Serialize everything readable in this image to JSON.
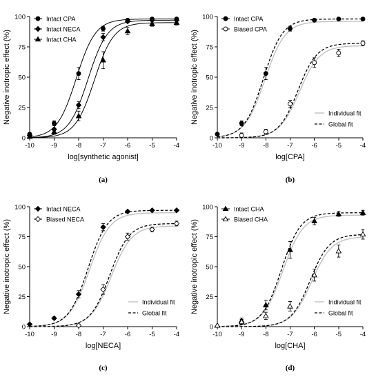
{
  "colors": {
    "axis": "#000000",
    "series_solid": "#000000",
    "individual_fit": "#c0c0c0",
    "background": "#ffffff"
  },
  "chart_data": [
    {
      "type": "line",
      "panel": "a",
      "caption": "(a)",
      "xlabel": "log[synthetic agonist]",
      "ylabel": "Negative inotropic effect (%)",
      "xlim": [
        -10,
        -4
      ],
      "ylim": [
        0,
        100
      ],
      "xticks": [
        "-10",
        "-9",
        "-8",
        "-7",
        "-6",
        "-5",
        "-4"
      ],
      "yticks": [
        "0",
        "25",
        "50",
        "75",
        "100"
      ],
      "legend_position": "top-left",
      "series": [
        {
          "name": "Intact CPA",
          "marker": "circle-filled",
          "x": [
            -10,
            -9,
            -8,
            -7,
            -6,
            -5,
            -4
          ],
          "y": [
            3,
            12,
            53,
            90,
            97,
            98,
            98
          ],
          "err": [
            0,
            2,
            5,
            2,
            1,
            1,
            1
          ]
        },
        {
          "name": "Intact NECA",
          "marker": "diamond-filled",
          "x": [
            -10,
            -9,
            -8,
            -7,
            -6,
            -5,
            -4
          ],
          "y": [
            2,
            7,
            27,
            83,
            96,
            97,
            97
          ],
          "err": [
            0,
            1,
            3,
            3,
            1,
            1,
            1
          ]
        },
        {
          "name": "Intact CHA",
          "marker": "triangle-filled",
          "x": [
            -10,
            -9,
            -8,
            -7,
            -6,
            -5,
            -4
          ],
          "y": [
            1,
            5,
            18,
            64,
            88,
            94,
            95
          ],
          "err": [
            0,
            2,
            4,
            7,
            3,
            2,
            2
          ]
        }
      ]
    },
    {
      "type": "line",
      "panel": "b",
      "caption": "(b)",
      "xlabel": "log[CPA]",
      "ylabel": "Negative inotropic effect (%)",
      "xlim": [
        -10,
        -4
      ],
      "ylim": [
        0,
        100
      ],
      "xticks": [
        "-10",
        "-9",
        "-8",
        "-7",
        "-6",
        "-5",
        "-4"
      ],
      "yticks": [
        "0",
        "25",
        "50",
        "75",
        "100"
      ],
      "legend_position": "top-left",
      "fit_legend_position": "bottom-right",
      "fit_legend": [
        "Individual fit",
        "Global fit"
      ],
      "series": [
        {
          "name": "Intact CPA",
          "marker": "circle-filled",
          "x": [
            -10,
            -9,
            -8,
            -7,
            -6,
            -5,
            -4
          ],
          "y": [
            3,
            12,
            53,
            90,
            97,
            98,
            98
          ],
          "err": [
            0,
            2,
            5,
            2,
            1,
            1,
            1
          ]
        },
        {
          "name": "Biased CPA",
          "marker": "circle-open",
          "x": [
            -9,
            -8,
            -7,
            -6,
            -5,
            -4
          ],
          "y": [
            2,
            5,
            28,
            62,
            70,
            78
          ],
          "err": [
            2,
            2,
            3,
            4,
            3,
            2
          ]
        }
      ]
    },
    {
      "type": "line",
      "panel": "c",
      "caption": "(c)",
      "xlabel": "log[NECA]",
      "ylabel": "Negative inotropic effect (%)",
      "xlim": [
        -10,
        -4
      ],
      "ylim": [
        0,
        100
      ],
      "xticks": [
        "-10",
        "-9",
        "-8",
        "-7",
        "-6",
        "-5",
        "-4"
      ],
      "yticks": [
        "0",
        "25",
        "50",
        "75",
        "100"
      ],
      "legend_position": "top-left",
      "fit_legend_position": "bottom-right",
      "fit_legend": [
        "Individual fit",
        "Global fit"
      ],
      "series": [
        {
          "name": "Intact NECA",
          "marker": "diamond-filled",
          "x": [
            -10,
            -9,
            -8,
            -7,
            -6,
            -5,
            -4
          ],
          "y": [
            2,
            7,
            27,
            83,
            96,
            97,
            97
          ],
          "err": [
            0,
            1,
            3,
            3,
            1,
            1,
            1
          ]
        },
        {
          "name": "Biased NECA",
          "marker": "diamond-open",
          "x": [
            -8,
            -7,
            -6,
            -5,
            -4
          ],
          "y": [
            1,
            31,
            75,
            81,
            86
          ],
          "err": [
            1,
            4,
            3,
            2,
            2
          ]
        }
      ]
    },
    {
      "type": "line",
      "panel": "d",
      "caption": "(d)",
      "xlabel": "log[CHA]",
      "ylabel": "Negative inotropic effect (%)",
      "xlim": [
        -10,
        -4
      ],
      "ylim": [
        0,
        100
      ],
      "xticks": [
        "-10",
        "-9",
        "-8",
        "-7",
        "-6",
        "-5",
        "-4"
      ],
      "yticks": [
        "0",
        "25",
        "50",
        "75",
        "100"
      ],
      "legend_position": "top-left",
      "fit_legend_position": "bottom-right",
      "fit_legend": [
        "Individual fit",
        "Global fit"
      ],
      "series": [
        {
          "name": "Intact CHA",
          "marker": "triangle-filled",
          "x": [
            -10,
            -9,
            -8,
            -7,
            -6,
            -5,
            -4
          ],
          "y": [
            1,
            5,
            18,
            64,
            88,
            94,
            95
          ],
          "err": [
            0,
            2,
            4,
            7,
            3,
            2,
            2
          ]
        },
        {
          "name": "Biased CHA",
          "marker": "triangle-open",
          "x": [
            -10,
            -9,
            -8,
            -7,
            -6,
            -5,
            -4
          ],
          "y": [
            1,
            4,
            9,
            17,
            43,
            63,
            77
          ],
          "err": [
            0,
            2,
            3,
            4,
            5,
            5,
            4
          ]
        }
      ]
    }
  ]
}
